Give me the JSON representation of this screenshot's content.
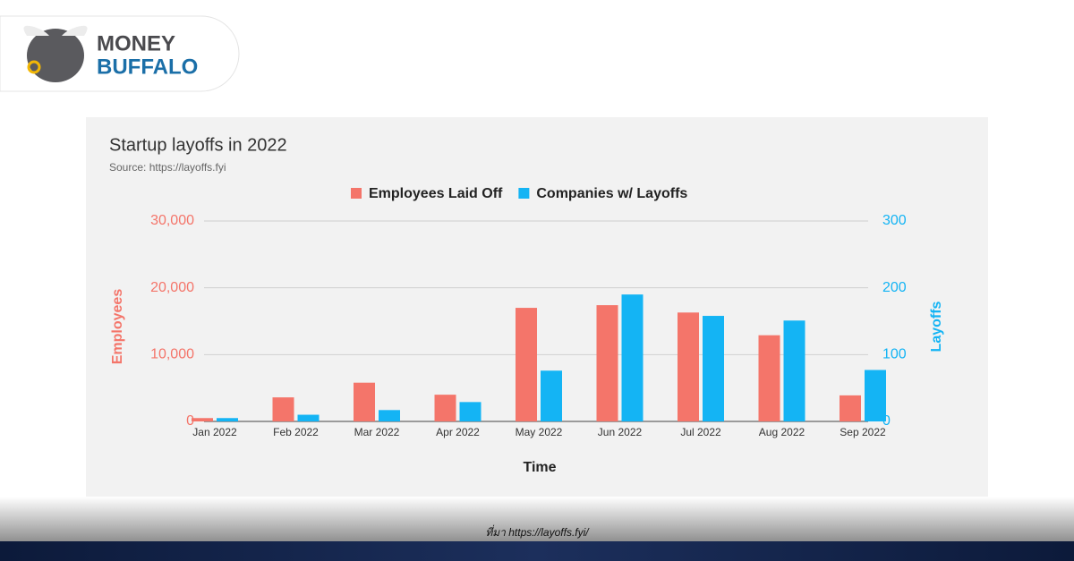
{
  "brand": {
    "line1": "MONEY",
    "line2": "BUFFALO"
  },
  "source_note": "ที่มา https://layoffs.fyi/",
  "chart_data": {
    "type": "bar",
    "title": "Startup layoffs in 2022",
    "subtitle": "Source: https://layoffs.fyi",
    "x_label": "Time",
    "y_label": "Employees",
    "y2_label": "Layoffs",
    "categories": [
      "Jan 2022",
      "Feb 2022",
      "Mar 2022",
      "Apr 2022",
      "May 2022",
      "Jun 2022",
      "Jul 2022",
      "Aug 2022",
      "Sep 2022"
    ],
    "series": [
      {
        "name": "Employees Laid Off",
        "color": "#f4756a",
        "values": [
          500,
          3600,
          5800,
          4000,
          17000,
          17400,
          16300,
          12900,
          3900
        ]
      },
      {
        "name": "Companies w/ Layoffs",
        "color": "#14b4f4",
        "axis": "y2",
        "values": [
          5,
          10,
          17,
          29,
          76,
          190,
          158,
          151,
          77
        ]
      }
    ],
    "ylim": [
      0,
      30000
    ],
    "yticks": [
      0,
      {
        "value": 10000,
        "label": "10,000"
      },
      {
        "value": 20000,
        "label": "20,000"
      },
      {
        "value": 30000,
        "label": "30,000"
      }
    ],
    "y2lim": [
      0,
      300
    ],
    "y2ticks": [
      0,
      100,
      200,
      300
    ],
    "grid": true,
    "legend": "top"
  }
}
